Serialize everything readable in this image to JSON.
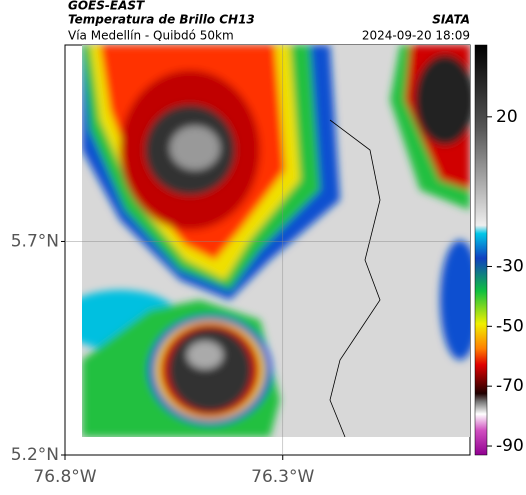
{
  "header": {
    "satellite": "GOES-EAST",
    "product": "Temperatura de Brillo CH13",
    "source": "SIATA",
    "route": "Vía Medellín - Quibdó 50km",
    "timestamp": "2024-09-20 18:09"
  },
  "map": {
    "xlim": [
      -76.8,
      -75.87
    ],
    "ylim": [
      5.2,
      6.16
    ],
    "xticks": [
      {
        "value": -76.8,
        "label": "76.8°W"
      },
      {
        "value": -76.3,
        "label": "76.3°W"
      }
    ],
    "yticks": [
      {
        "value": 5.7,
        "label": "5.7°N"
      },
      {
        "value": 5.2,
        "label": "5.2°N"
      }
    ],
    "grid": true
  },
  "colorbar": {
    "clim": [
      -93,
      44
    ],
    "ticks": [
      20,
      -30,
      -50,
      -70,
      -90
    ]
  }
}
